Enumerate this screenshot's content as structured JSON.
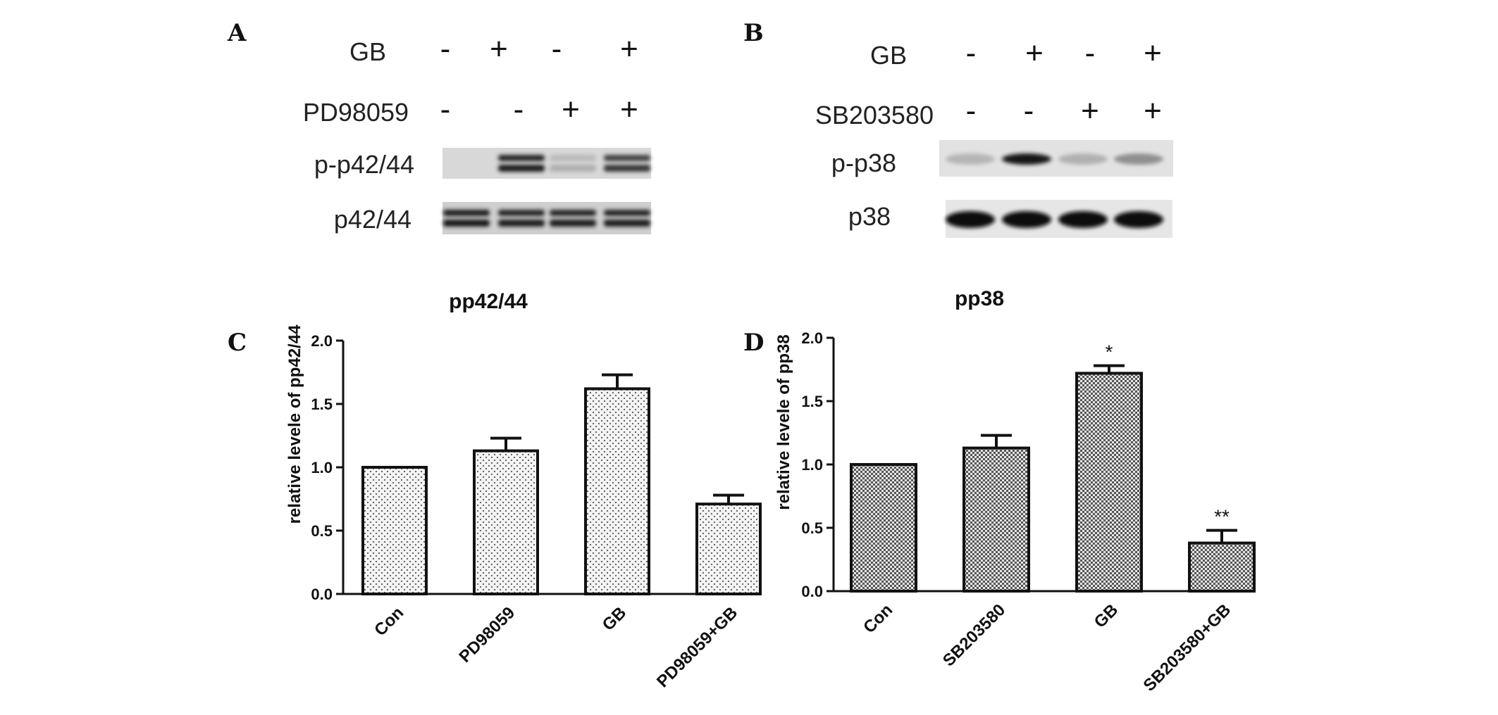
{
  "blots": [
    {
      "panel": "A",
      "treatments": [
        {
          "name": "GB",
          "signs": [
            "-",
            "+",
            "-",
            "+"
          ]
        },
        {
          "name": "PD98059",
          "signs": [
            "-",
            "-",
            "+",
            "+"
          ]
        }
      ],
      "rows": [
        {
          "name": "p-p42/44",
          "intensity": [
            0,
            0.85,
            0.08,
            0.7
          ]
        },
        {
          "name": "p42/44",
          "intensity": [
            0.9,
            0.85,
            0.85,
            0.85
          ]
        }
      ]
    },
    {
      "panel": "B",
      "treatments": [
        {
          "name": "GB",
          "signs": [
            "-",
            "+",
            "-",
            "+"
          ]
        },
        {
          "name": "SB203580",
          "signs": [
            "-",
            "-",
            "+",
            "+"
          ]
        }
      ],
      "rows": [
        {
          "name": "p-p38",
          "intensity": [
            0.1,
            0.95,
            0.12,
            0.3
          ]
        },
        {
          "name": "p38",
          "intensity": [
            1,
            1,
            1,
            1
          ]
        }
      ]
    }
  ],
  "chart_data": [
    {
      "panel": "C",
      "type": "bar",
      "title": "pp42/44",
      "ylabel": "relative levele of pp42/44",
      "categories": [
        "Con",
        "PD98059",
        "GB",
        "PD98059+GB"
      ],
      "values": [
        1.0,
        1.13,
        1.62,
        0.71
      ],
      "errors": [
        0,
        0.1,
        0.11,
        0.07
      ],
      "annotations": [
        "",
        "",
        "",
        ""
      ],
      "ylim": [
        0,
        2.0
      ],
      "yticks": [
        "0.0",
        "0.5",
        "1.0",
        "1.5",
        "2.0"
      ],
      "pattern": "dots"
    },
    {
      "panel": "D",
      "type": "bar",
      "title": "pp38",
      "ylabel": "relative levele of pp38",
      "categories": [
        "Con",
        "SB203580",
        "GB",
        "SB203580+GB"
      ],
      "values": [
        1.0,
        1.13,
        1.72,
        0.38
      ],
      "errors": [
        0,
        0.1,
        0.06,
        0.1
      ],
      "annotations": [
        "",
        "",
        "*",
        "**"
      ],
      "ylim": [
        0,
        2.0
      ],
      "yticks": [
        "0.0",
        "0.5",
        "1.0",
        "1.5",
        "2.0"
      ],
      "pattern": "checker"
    }
  ]
}
